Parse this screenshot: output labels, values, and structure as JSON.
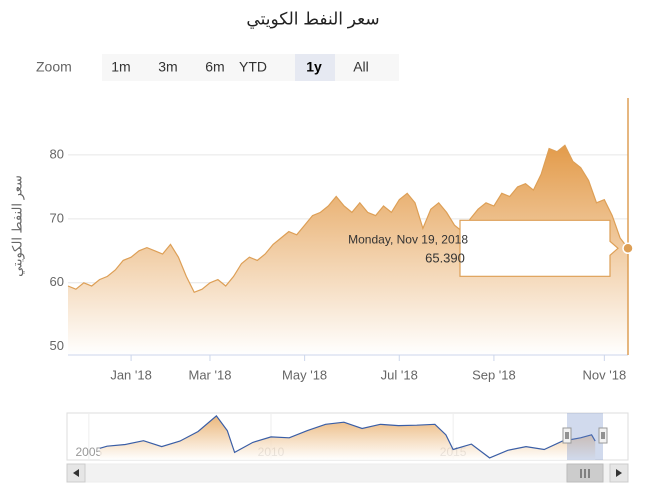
{
  "chart_data": {
    "type": "area",
    "title": "سعر النفط الكويتي",
    "y_label": "سعر النفط الكويتي",
    "color": "#dd9f56",
    "zoom": {
      "label": "Zoom",
      "buttons": [
        "1m",
        "3m",
        "6m",
        "YTD",
        "1y",
        "All"
      ],
      "selected": "1y"
    },
    "categories": [
      null,
      null,
      null,
      null,
      null,
      null,
      null,
      null,
      "Jan '18",
      null,
      null,
      null,
      null,
      null,
      null,
      null,
      null,
      null,
      "Mar '18",
      null,
      null,
      null,
      null,
      null,
      null,
      null,
      null,
      null,
      null,
      null,
      "May '18",
      null,
      null,
      null,
      null,
      null,
      null,
      null,
      null,
      null,
      null,
      null,
      "Jul '18",
      null,
      null,
      null,
      null,
      null,
      null,
      null,
      null,
      null,
      null,
      null,
      "Sep '18",
      null,
      null,
      null,
      null,
      null,
      null,
      null,
      null,
      null,
      null,
      null,
      null,
      null,
      "Nov '18",
      null,
      null,
      null
    ],
    "values": [
      59.5,
      59,
      60,
      59.5,
      60.5,
      61,
      62,
      63.5,
      64,
      65,
      65.5,
      65,
      64.5,
      66,
      64,
      61,
      58.5,
      59,
      60,
      60.5,
      59.5,
      61,
      63,
      64,
      63.5,
      64.5,
      66,
      67,
      68,
      67.5,
      69,
      70.5,
      71,
      72,
      73.5,
      72,
      71,
      72.5,
      71,
      70.5,
      72,
      71,
      73,
      74,
      72.5,
      68.5,
      71.5,
      72.5,
      71,
      69,
      68,
      70,
      71.5,
      72.5,
      72,
      74,
      73.5,
      75,
      75.5,
      74.5,
      77,
      81,
      80.5,
      81.5,
      79,
      78,
      76,
      72.5,
      73,
      70.5,
      67,
      65.39
    ],
    "ylim": [
      48.7,
      88.9
    ],
    "yticks": [
      50,
      60,
      70,
      80
    ],
    "grid": true,
    "tooltip": {
      "header": "Monday, Nov 19, 2018",
      "text": "65.390"
    },
    "navigator": {
      "x": [
        2005.3,
        2005.5,
        2006,
        2006.5,
        2007,
        2007.5,
        2008,
        2008.5,
        2008.8,
        2009,
        2009.5,
        2010,
        2010.5,
        2011,
        2011.5,
        2012,
        2012.5,
        2013,
        2013.5,
        2014,
        2014.5,
        2014.8,
        2015,
        2015.5,
        2016,
        2016.5,
        2017,
        2017.5,
        2018,
        2018.5,
        2018.8,
        2018.9
      ],
      "values": [
        48,
        53,
        57,
        66,
        52,
        65,
        88,
        125,
        90,
        38,
        62,
        75,
        73,
        90,
        105,
        110,
        95,
        105,
        102,
        103,
        105,
        80,
        45,
        58,
        25,
        43,
        52,
        45,
        65,
        73,
        80,
        65
      ],
      "xlim": [
        2004.4,
        2019.8
      ],
      "xticks": [
        2005,
        2010,
        2015
      ],
      "ylim": [
        20,
        132
      ],
      "line_color": "#3a5ea6"
    }
  }
}
